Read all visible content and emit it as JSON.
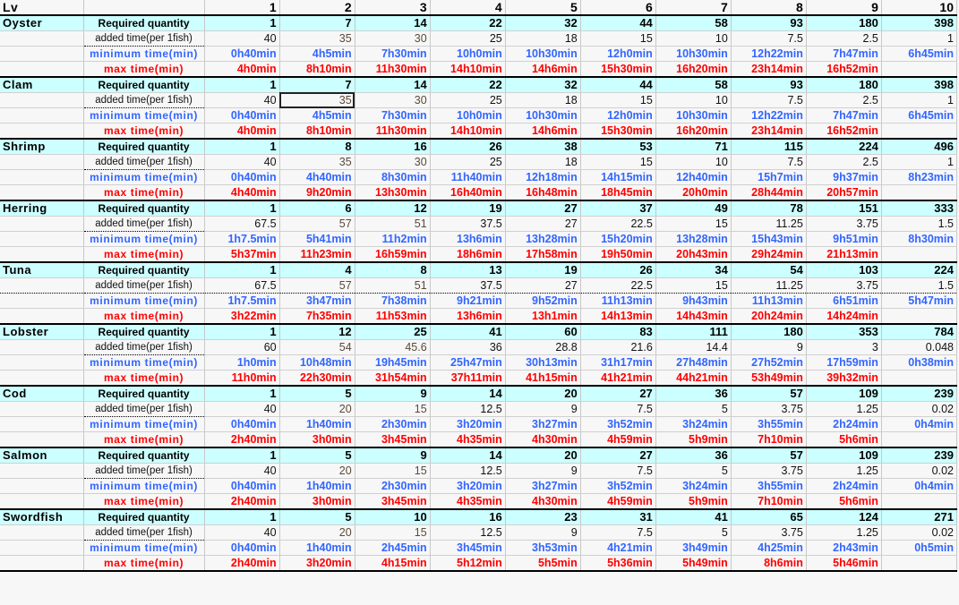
{
  "header": {
    "title": "Lv",
    "levels": [
      "1",
      "2",
      "3",
      "4",
      "5",
      "6",
      "7",
      "8",
      "9",
      "10"
    ]
  },
  "labels": {
    "req": "Required quantity",
    "add": "added time(per 1fish)",
    "min": "minimum time(min)",
    "max": "max time(min)"
  },
  "colors": {
    "required_bg": "#ccffff",
    "min": "#3366ff",
    "max": "#ff0000"
  },
  "selected_cell": {
    "fish": "Clam",
    "row": "added time(per 1fish)",
    "level": "2"
  },
  "fish": [
    {
      "name": "Oyster",
      "req": [
        "1",
        "7",
        "14",
        "22",
        "32",
        "44",
        "58",
        "93",
        "180",
        "398"
      ],
      "add": [
        "40",
        "35",
        "30",
        "25",
        "18",
        "15",
        "10",
        "7.5",
        "2.5",
        "1"
      ],
      "min": [
        "0h40min",
        "4h5min",
        "7h30min",
        "10h0min",
        "10h30min",
        "12h0min",
        "10h30min",
        "12h22min",
        "7h47min",
        "6h45min"
      ],
      "max": [
        "4h0min",
        "8h10min",
        "11h30min",
        "14h10min",
        "14h6min",
        "15h30min",
        "16h20min",
        "23h14min",
        "16h52min",
        ""
      ]
    },
    {
      "name": "Clam",
      "req": [
        "1",
        "7",
        "14",
        "22",
        "32",
        "44",
        "58",
        "93",
        "180",
        "398"
      ],
      "add": [
        "40",
        "35",
        "30",
        "25",
        "18",
        "15",
        "10",
        "7.5",
        "2.5",
        "1"
      ],
      "min": [
        "0h40min",
        "4h5min",
        "7h30min",
        "10h0min",
        "10h30min",
        "12h0min",
        "10h30min",
        "12h22min",
        "7h47min",
        "6h45min"
      ],
      "max": [
        "4h0min",
        "8h10min",
        "11h30min",
        "14h10min",
        "14h6min",
        "15h30min",
        "16h20min",
        "23h14min",
        "16h52min",
        ""
      ]
    },
    {
      "name": "Shrimp",
      "req": [
        "1",
        "8",
        "16",
        "26",
        "38",
        "53",
        "71",
        "115",
        "224",
        "496"
      ],
      "add": [
        "40",
        "35",
        "30",
        "25",
        "18",
        "15",
        "10",
        "7.5",
        "2.5",
        "1"
      ],
      "min": [
        "0h40min",
        "4h40min",
        "8h30min",
        "11h40min",
        "12h18min",
        "14h15min",
        "12h40min",
        "15h7min",
        "9h37min",
        "8h23min"
      ],
      "max": [
        "4h40min",
        "9h20min",
        "13h30min",
        "16h40min",
        "16h48min",
        "18h45min",
        "20h0min",
        "28h44min",
        "20h57min",
        ""
      ]
    },
    {
      "name": "Herring",
      "req": [
        "1",
        "6",
        "12",
        "19",
        "27",
        "37",
        "49",
        "78",
        "151",
        "333"
      ],
      "add": [
        "67.5",
        "57",
        "51",
        "37.5",
        "27",
        "22.5",
        "15",
        "11.25",
        "3.75",
        "1.5"
      ],
      "min": [
        "1h7.5min",
        "5h41min",
        "11h2min",
        "13h6min",
        "13h28min",
        "15h20min",
        "13h28min",
        "15h43min",
        "9h51min",
        "8h30min"
      ],
      "max": [
        "5h37min",
        "11h23min",
        "16h59min",
        "18h6min",
        "17h58min",
        "19h50min",
        "20h43min",
        "29h24min",
        "21h13min",
        ""
      ]
    },
    {
      "name": "Tuna",
      "req": [
        "1",
        "4",
        "8",
        "13",
        "19",
        "26",
        "34",
        "54",
        "103",
        "224"
      ],
      "add": [
        "67.5",
        "57",
        "51",
        "37.5",
        "27",
        "22.5",
        "15",
        "11.25",
        "3.75",
        "1.5"
      ],
      "min": [
        "1h7.5min",
        "3h47min",
        "7h38min",
        "9h21min",
        "9h52min",
        "11h13min",
        "9h43min",
        "11h13min",
        "6h51min",
        "5h47min"
      ],
      "max": [
        "3h22min",
        "7h35min",
        "11h53min",
        "13h6min",
        "13h1min",
        "14h13min",
        "14h43min",
        "20h24min",
        "14h24min",
        ""
      ]
    },
    {
      "name": "Lobster",
      "req": [
        "1",
        "12",
        "25",
        "41",
        "60",
        "83",
        "111",
        "180",
        "353",
        "784"
      ],
      "add": [
        "60",
        "54",
        "45.6",
        "36",
        "28.8",
        "21.6",
        "14.4",
        "9",
        "3",
        "0.048"
      ],
      "min": [
        "1h0min",
        "10h48min",
        "19h45min",
        "25h47min",
        "30h13min",
        "31h17min",
        "27h48min",
        "27h52min",
        "17h59min",
        "0h38min"
      ],
      "max": [
        "11h0min",
        "22h30min",
        "31h54min",
        "37h11min",
        "41h15min",
        "41h21min",
        "44h21min",
        "53h49min",
        "39h32min",
        ""
      ]
    },
    {
      "name": "Cod",
      "req": [
        "1",
        "5",
        "9",
        "14",
        "20",
        "27",
        "36",
        "57",
        "109",
        "239"
      ],
      "add": [
        "40",
        "20",
        "15",
        "12.5",
        "9",
        "7.5",
        "5",
        "3.75",
        "1.25",
        "0.02"
      ],
      "min": [
        "0h40min",
        "1h40min",
        "2h30min",
        "3h20min",
        "3h27min",
        "3h52min",
        "3h24min",
        "3h55min",
        "2h24min",
        "0h4min"
      ],
      "max": [
        "2h40min",
        "3h0min",
        "3h45min",
        "4h35min",
        "4h30min",
        "4h59min",
        "5h9min",
        "7h10min",
        "5h6min",
        ""
      ]
    },
    {
      "name": "Salmon",
      "req": [
        "1",
        "5",
        "9",
        "14",
        "20",
        "27",
        "36",
        "57",
        "109",
        "239"
      ],
      "add": [
        "40",
        "20",
        "15",
        "12.5",
        "9",
        "7.5",
        "5",
        "3.75",
        "1.25",
        "0.02"
      ],
      "min": [
        "0h40min",
        "1h40min",
        "2h30min",
        "3h20min",
        "3h27min",
        "3h52min",
        "3h24min",
        "3h55min",
        "2h24min",
        "0h4min"
      ],
      "max": [
        "2h40min",
        "3h0min",
        "3h45min",
        "4h35min",
        "4h30min",
        "4h59min",
        "5h9min",
        "7h10min",
        "5h6min",
        ""
      ]
    },
    {
      "name": "Swordfish",
      "req": [
        "1",
        "5",
        "10",
        "16",
        "23",
        "31",
        "41",
        "65",
        "124",
        "271"
      ],
      "add": [
        "40",
        "20",
        "15",
        "12.5",
        "9",
        "7.5",
        "5",
        "3.75",
        "1.25",
        "0.02"
      ],
      "min": [
        "0h40min",
        "1h40min",
        "2h45min",
        "3h45min",
        "3h53min",
        "4h21min",
        "3h49min",
        "4h25min",
        "2h43min",
        "0h5min"
      ],
      "max": [
        "2h40min",
        "3h20min",
        "4h15min",
        "5h12min",
        "5h5min",
        "5h36min",
        "5h49min",
        "8h6min",
        "5h46min",
        ""
      ]
    }
  ]
}
